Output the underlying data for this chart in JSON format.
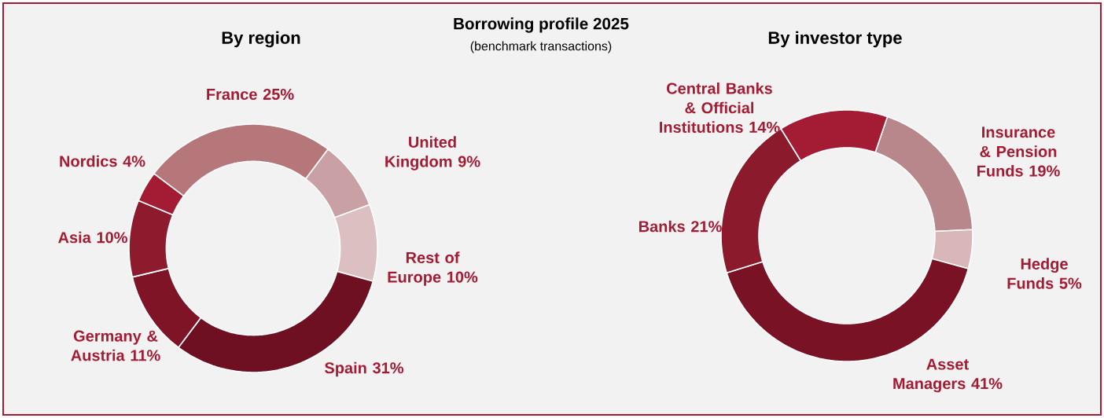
{
  "chart_data": [
    {
      "type": "other",
      "title": "Borrowing profile 2025",
      "subtitle": "(benchmark transactions)"
    },
    {
      "type": "donut",
      "title": "By region",
      "categories": [
        "United Kingdom",
        "Rest of Europe",
        "Spain",
        "Germany & Austria",
        "Asia",
        "Nordics",
        "France"
      ],
      "values": [
        9,
        10,
        31,
        11,
        10,
        4,
        25
      ],
      "value_labels": [
        "9%",
        "10%",
        "31%",
        "11%",
        "10%",
        "4%",
        "25%"
      ],
      "colors": [
        "#c9a0a3",
        "#dbbfc1",
        "#6e0f22",
        "#7e1426",
        "#8e1a2e",
        "#a31c34",
        "#b5777a"
      ]
    },
    {
      "type": "donut",
      "title": "By investor type",
      "categories": [
        "Insurance & Pension Funds",
        "Hedge Funds",
        "Asset Managers",
        "Banks",
        "Central Banks & Official Institutions"
      ],
      "values": [
        19,
        5,
        41,
        21,
        14
      ],
      "value_labels": [
        "19%",
        "5%",
        "41%",
        "21%",
        "14%"
      ],
      "colors": [
        "#b8878b",
        "#d9b6b8",
        "#7a1226",
        "#8a1a2c",
        "#a31c34"
      ]
    }
  ]
}
